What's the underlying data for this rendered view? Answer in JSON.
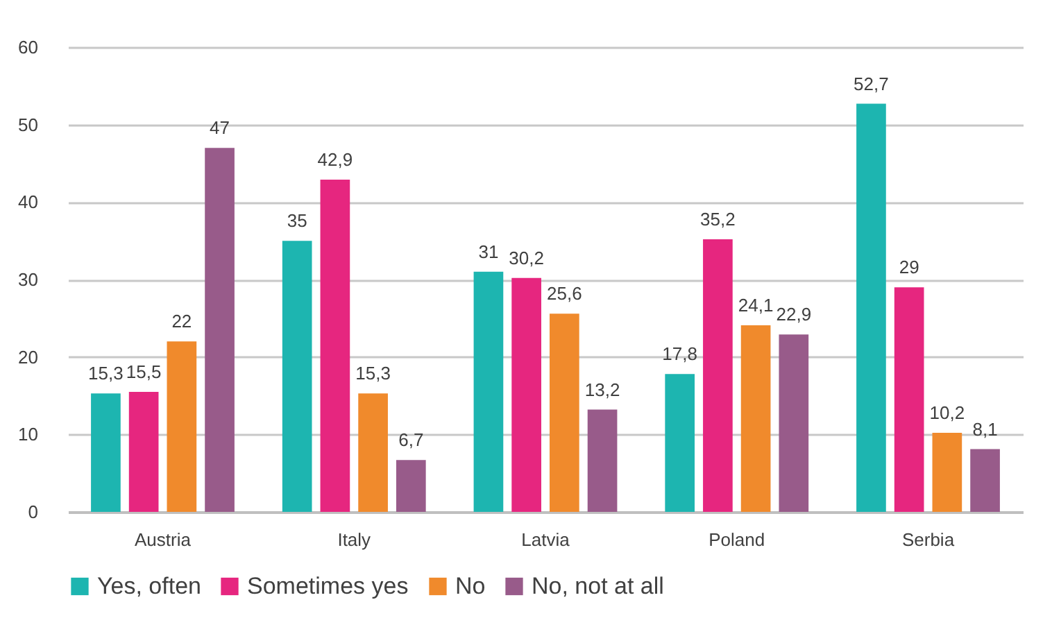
{
  "chart_data": {
    "type": "bar",
    "categories": [
      "Austria",
      "Italy",
      "Latvia",
      "Poland",
      "Serbia"
    ],
    "series": [
      {
        "name": "Yes, often",
        "color": "#1db5b0",
        "values": [
          15.3,
          35,
          31,
          17.8,
          52.7
        ],
        "value_labels": [
          "15,3",
          "35",
          "31",
          "17,8",
          "52,7"
        ]
      },
      {
        "name": "Sometimes yes",
        "color": "#e6267f",
        "values": [
          15.5,
          42.9,
          30.2,
          35.2,
          29
        ],
        "value_labels": [
          "15,5",
          "42,9",
          "30,2",
          "35,2",
          "29"
        ]
      },
      {
        "name": "No",
        "color": "#f08a2c",
        "values": [
          22,
          15.3,
          25.6,
          24.1,
          10.2
        ],
        "value_labels": [
          "22",
          "15,3",
          "25,6",
          "24,1",
          "10,2"
        ]
      },
      {
        "name": "No, not at all",
        "color": "#985b8a",
        "values": [
          47,
          6.7,
          13.2,
          22.9,
          8.1
        ],
        "value_labels": [
          "47",
          "6,7",
          "13,2",
          "22,9",
          "8,1"
        ]
      }
    ],
    "ylim": [
      0,
      60
    ],
    "yticks": [
      0,
      10,
      20,
      30,
      40,
      50,
      60
    ],
    "grid": "y",
    "legend": "bottom"
  }
}
